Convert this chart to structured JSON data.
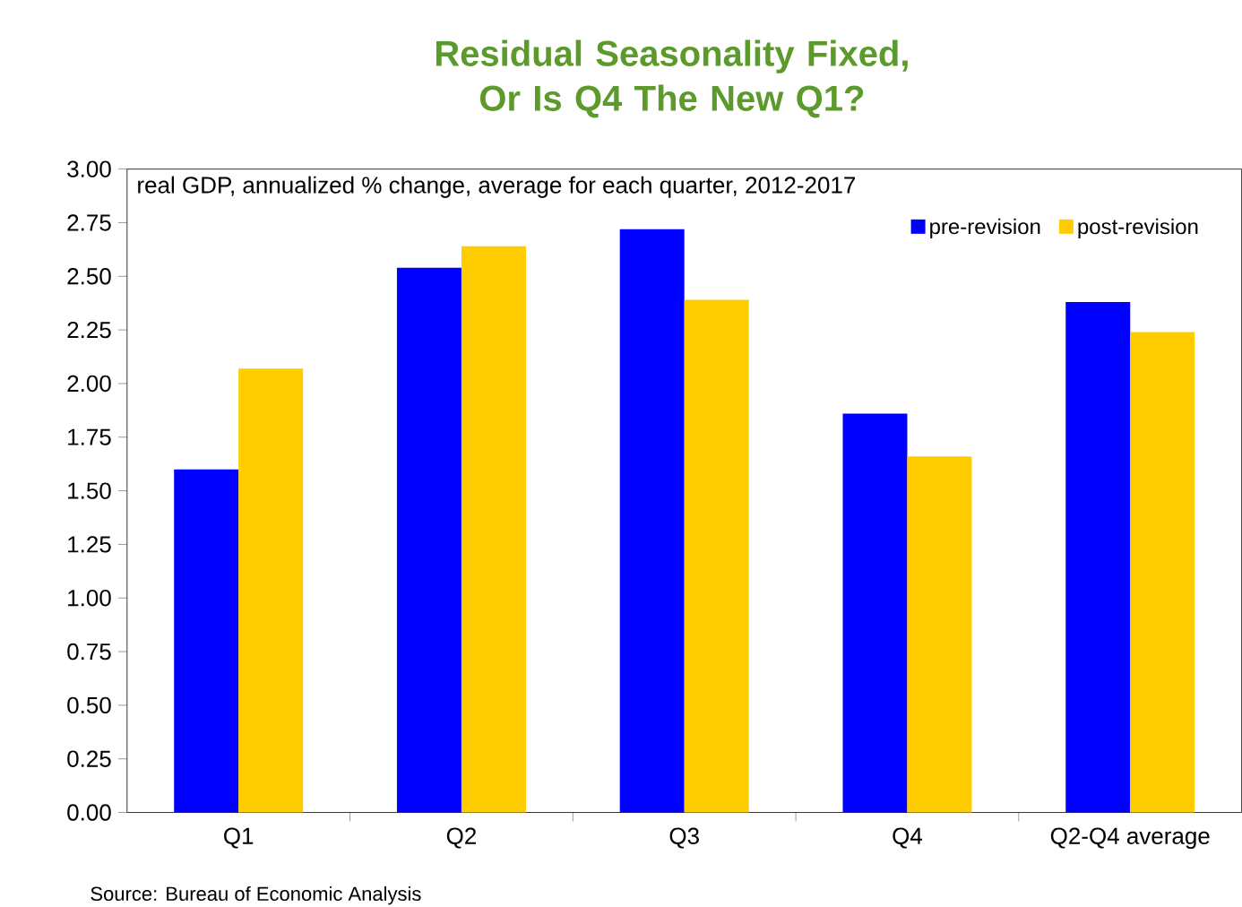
{
  "chart_data": {
    "type": "bar",
    "title": "Residual Seasonality Fixed, Or Is Q4 The New Q1?",
    "subtitle": "real GDP, annualized % change, average for each quarter, 2012-2017",
    "categories": [
      "Q1",
      "Q2",
      "Q3",
      "Q4",
      "Q2-Q4 average"
    ],
    "series": [
      {
        "name": "pre-revision",
        "color": "#0000ff",
        "values": [
          1.6,
          2.54,
          2.72,
          1.86,
          2.38
        ]
      },
      {
        "name": "post-revision",
        "color": "#ffcc00",
        "values": [
          2.07,
          2.64,
          2.39,
          1.66,
          2.24
        ]
      }
    ],
    "ylim": [
      0,
      3
    ],
    "yticks": [
      {
        "value": 0,
        "label": "0.00"
      },
      {
        "value": 0.25,
        "label": "0.25"
      },
      {
        "value": 0.5,
        "label": "0.50"
      },
      {
        "value": 0.75,
        "label": "0.75"
      },
      {
        "value": 1,
        "label": "1.00"
      },
      {
        "value": 1.25,
        "label": "1.25"
      },
      {
        "value": 1.5,
        "label": "1.50"
      },
      {
        "value": 1.75,
        "label": "1.75"
      },
      {
        "value": 2,
        "label": "2.00"
      },
      {
        "value": 2.25,
        "label": "2.25"
      },
      {
        "value": 2.5,
        "label": "2.50"
      },
      {
        "value": 2.75,
        "label": "2.75"
      },
      {
        "value": 3,
        "label": "3.00"
      }
    ],
    "grid": false,
    "legend": "top right",
    "annotations": [
      "Source: Bureau of Economic Analysis"
    ]
  }
}
